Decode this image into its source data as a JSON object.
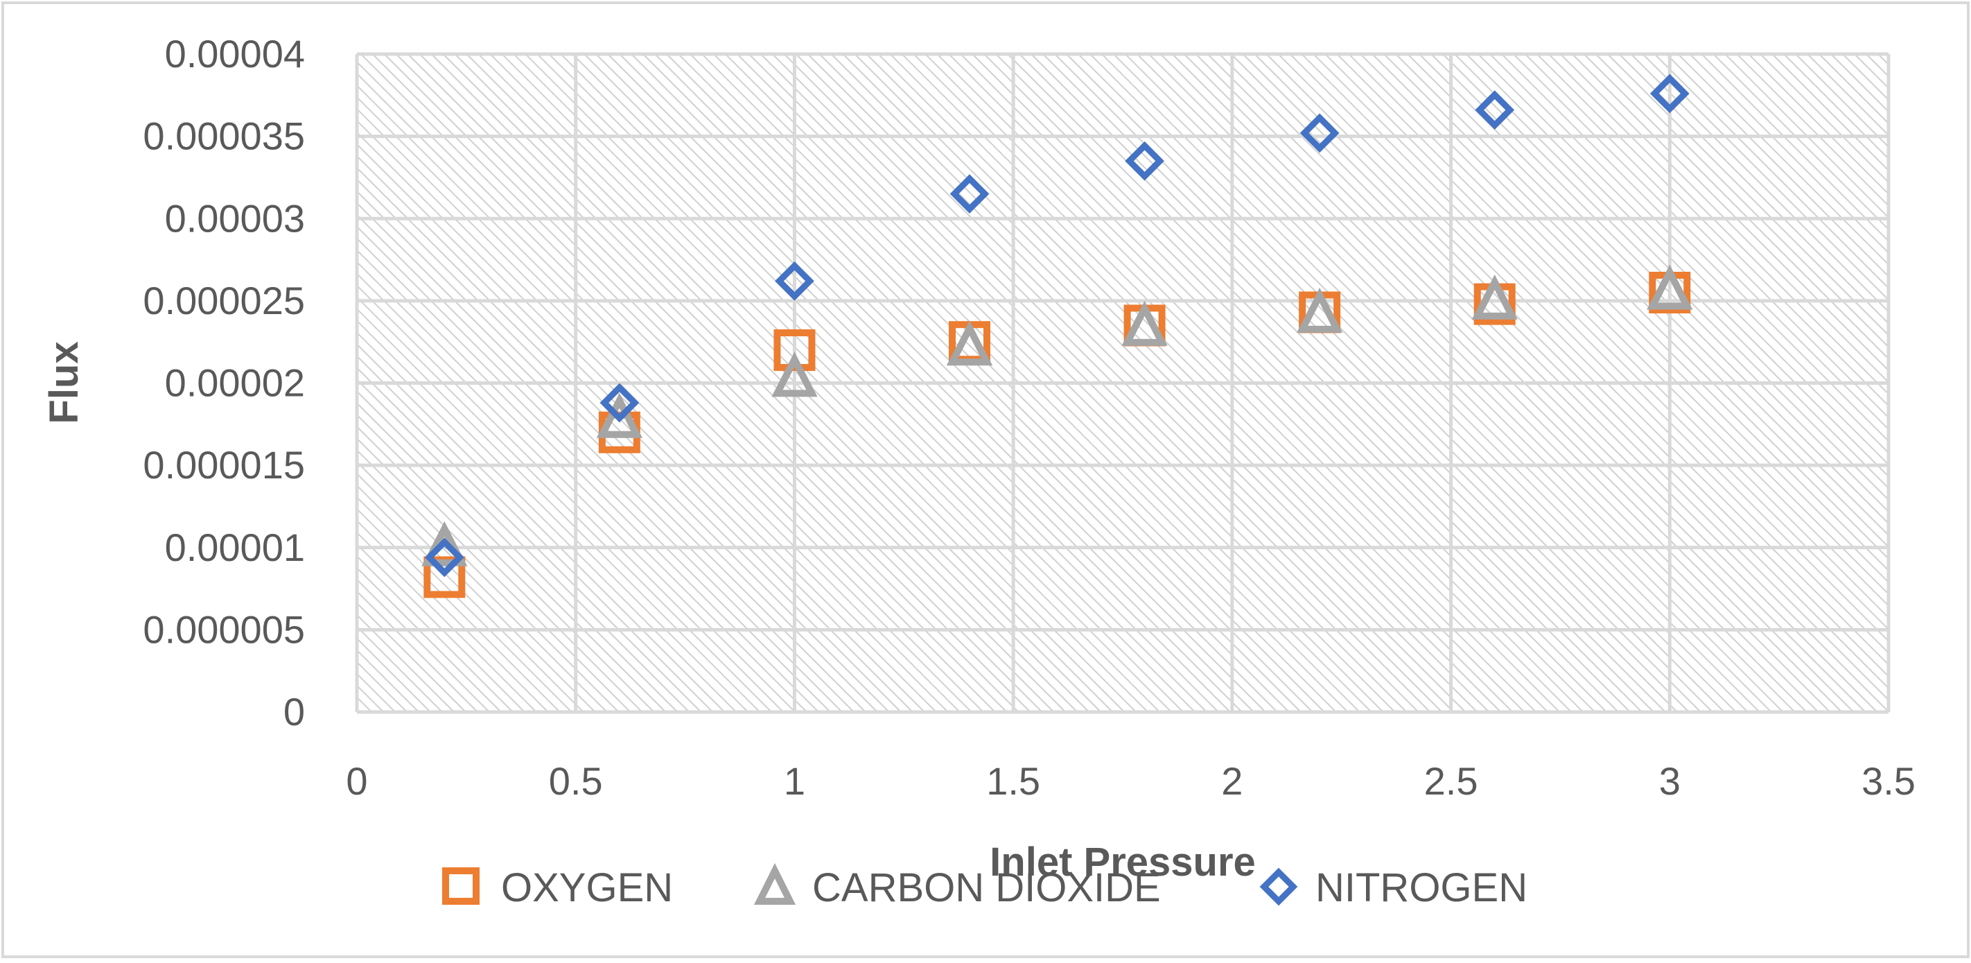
{
  "chart_data": {
    "type": "scatter",
    "title": "",
    "xlabel": "Inlet Pressure",
    "ylabel": "Flux",
    "xlim": [
      0,
      3.5
    ],
    "ylim": [
      0,
      4e-05
    ],
    "xticks": [
      0,
      0.5,
      1,
      1.5,
      2,
      2.5,
      3,
      3.5
    ],
    "xtick_labels": [
      "0",
      "0.5",
      "1",
      "1.5",
      "2",
      "2.5",
      "3",
      "3.5"
    ],
    "yticks": [
      0,
      5e-06,
      1e-05,
      1.5e-05,
      2e-05,
      2.5e-05,
      3e-05,
      3.5e-05,
      4e-05
    ],
    "ytick_labels": [
      "0",
      "0.000005",
      "0.00001",
      "0.000015",
      "0.00002",
      "0.000025",
      "0.00003",
      "0.000035",
      "0.00004"
    ],
    "grid": true,
    "legend_position": "bottom",
    "series": [
      {
        "name": "OXYGEN",
        "marker": "square",
        "color": "#ED7D31",
        "x": [
          0.2,
          0.6,
          1,
          1.4,
          1.8,
          2.2,
          2.6,
          3
        ],
        "y": [
          8.2e-06,
          1.7e-05,
          2.2e-05,
          2.25e-05,
          2.35e-05,
          2.43e-05,
          2.48e-05,
          2.55e-05
        ]
      },
      {
        "name": "CARBON DIOXIDE",
        "marker": "triangle",
        "color": "#A5A5A5",
        "x": [
          0.2,
          0.6,
          1,
          1.4,
          1.8,
          2.2,
          2.6,
          3
        ],
        "y": [
          1e-05,
          1.78e-05,
          2.03e-05,
          2.22e-05,
          2.34e-05,
          2.42e-05,
          2.5e-05,
          2.56e-05
        ]
      },
      {
        "name": "NITROGEN",
        "marker": "diamond",
        "color": "#4472C4",
        "x": [
          0.2,
          0.6,
          1,
          1.4,
          1.8,
          2.2,
          2.6,
          3
        ],
        "y": [
          9.4e-06,
          1.88e-05,
          2.62e-05,
          3.15e-05,
          3.35e-05,
          3.52e-05,
          3.66e-05,
          3.76e-05
        ]
      }
    ]
  },
  "style": {
    "frame_color": "#D9D9D9",
    "grid_color": "#D9D9D9",
    "plot_background": "#FFFFFF",
    "hatch_color": "#D0D0D0"
  }
}
